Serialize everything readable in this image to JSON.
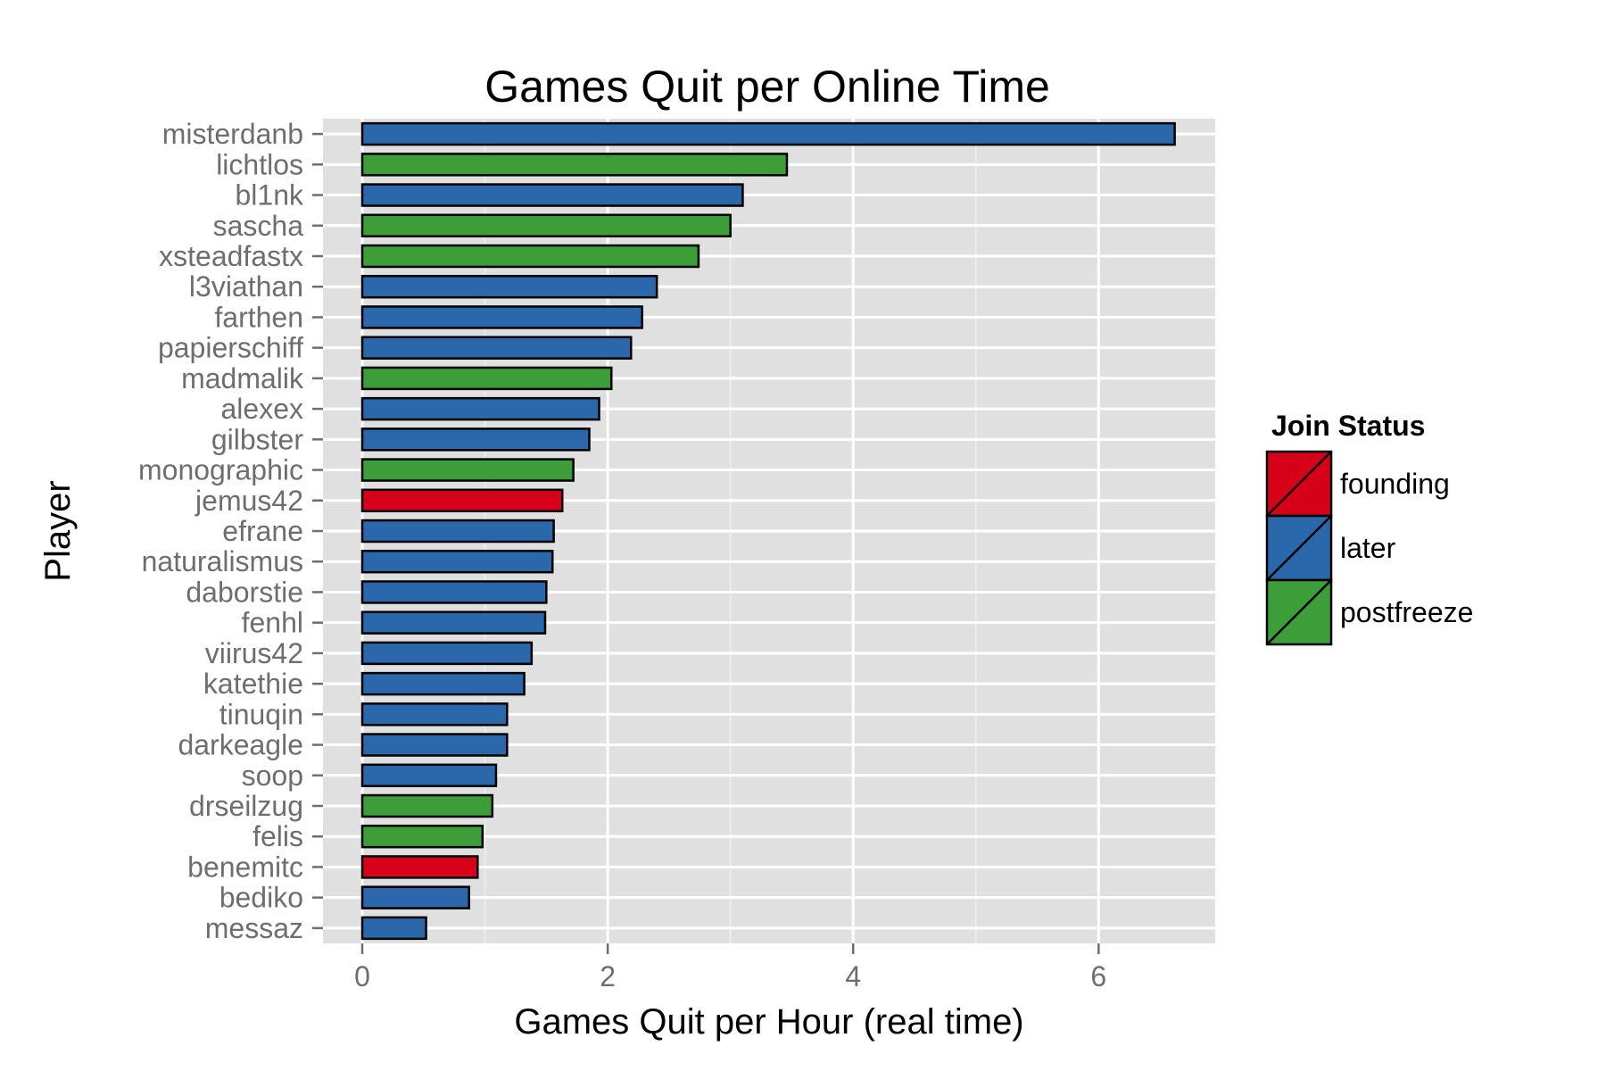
{
  "chart_data": {
    "type": "bar",
    "orientation": "horizontal",
    "title": "Games Quit per Online Time",
    "xlabel": "Games Quit per Hour (real time)",
    "ylabel": "Player",
    "xlim": [
      -0.32,
      6.95
    ],
    "xticks": [
      0,
      2,
      4,
      6
    ],
    "grid": true,
    "legend": {
      "title": "Join Status",
      "position": "right",
      "entries": [
        {
          "label": "founding",
          "color": "#d7001a"
        },
        {
          "label": "later",
          "color": "#2b67ab"
        },
        {
          "label": "postfreeze",
          "color": "#3d9d39"
        }
      ]
    },
    "bars": [
      {
        "player": "misterdanb",
        "value": 6.62,
        "status": "later"
      },
      {
        "player": "lichtlos",
        "value": 3.46,
        "status": "postfreeze"
      },
      {
        "player": "bl1nk",
        "value": 3.1,
        "status": "later"
      },
      {
        "player": "sascha",
        "value": 3.0,
        "status": "postfreeze"
      },
      {
        "player": "xsteadfastx",
        "value": 2.74,
        "status": "postfreeze"
      },
      {
        "player": "l3viathan",
        "value": 2.4,
        "status": "later"
      },
      {
        "player": "farthen",
        "value": 2.28,
        "status": "later"
      },
      {
        "player": "papierschiff",
        "value": 2.19,
        "status": "later"
      },
      {
        "player": "madmalik",
        "value": 2.03,
        "status": "postfreeze"
      },
      {
        "player": "alexex",
        "value": 1.93,
        "status": "later"
      },
      {
        "player": "gilbster",
        "value": 1.85,
        "status": "later"
      },
      {
        "player": "monographic",
        "value": 1.72,
        "status": "postfreeze"
      },
      {
        "player": "jemus42",
        "value": 1.63,
        "status": "founding"
      },
      {
        "player": "efrane",
        "value": 1.56,
        "status": "later"
      },
      {
        "player": "naturalismus",
        "value": 1.55,
        "status": "later"
      },
      {
        "player": "daborstie",
        "value": 1.5,
        "status": "later"
      },
      {
        "player": "fenhl",
        "value": 1.49,
        "status": "later"
      },
      {
        "player": "viirus42",
        "value": 1.38,
        "status": "later"
      },
      {
        "player": "katethie",
        "value": 1.32,
        "status": "later"
      },
      {
        "player": "tinuqin",
        "value": 1.18,
        "status": "later"
      },
      {
        "player": "darkeagle",
        "value": 1.18,
        "status": "later"
      },
      {
        "player": "soop",
        "value": 1.09,
        "status": "later"
      },
      {
        "player": "drseilzug",
        "value": 1.06,
        "status": "postfreeze"
      },
      {
        "player": "felis",
        "value": 0.98,
        "status": "postfreeze"
      },
      {
        "player": "benemitc",
        "value": 0.94,
        "status": "founding"
      },
      {
        "player": "bediko",
        "value": 0.87,
        "status": "later"
      },
      {
        "player": "messaz",
        "value": 0.52,
        "status": "later"
      }
    ]
  }
}
